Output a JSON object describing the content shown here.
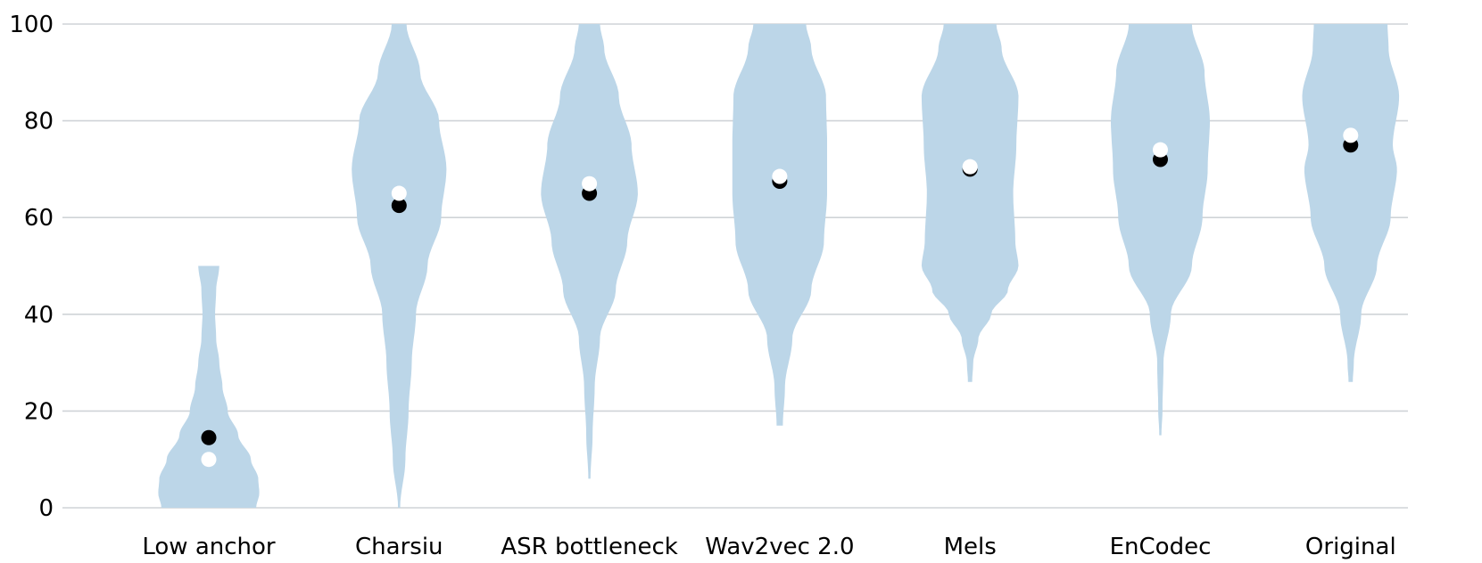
{
  "chart_data": {
    "type": "violin",
    "title": "",
    "xlabel": "",
    "ylabel": "",
    "ylim": [
      0,
      100
    ],
    "yticks": [
      0,
      20,
      40,
      60,
      80,
      100
    ],
    "grid": true,
    "colors": {
      "violin": "#bcd6e8",
      "mean": "#000000",
      "median": "#ffffff",
      "grid": "#cfd3d7"
    },
    "categories": [
      "Low anchor",
      "Charsiu",
      "ASR bottleneck",
      "Wav2vec 2.0",
      "Mels",
      "EnCodec",
      "Original"
    ],
    "series": [
      {
        "name": "Low anchor",
        "min": 0,
        "max": 50,
        "mean": 14.5,
        "median": 10,
        "profile": [
          [
            0,
            0.45
          ],
          [
            3,
            0.48
          ],
          [
            6,
            0.47
          ],
          [
            10,
            0.4
          ],
          [
            15,
            0.28
          ],
          [
            20,
            0.18
          ],
          [
            25,
            0.13
          ],
          [
            30,
            0.1
          ],
          [
            35,
            0.07
          ],
          [
            40,
            0.06
          ],
          [
            45,
            0.07
          ],
          [
            50,
            0.1
          ]
        ]
      },
      {
        "name": "Charsiu",
        "min": 0,
        "max": 100,
        "mean": 62.5,
        "median": 65,
        "profile": [
          [
            0,
            0.01
          ],
          [
            10,
            0.06
          ],
          [
            20,
            0.09
          ],
          [
            30,
            0.12
          ],
          [
            40,
            0.16
          ],
          [
            50,
            0.27
          ],
          [
            60,
            0.4
          ],
          [
            70,
            0.45
          ],
          [
            80,
            0.38
          ],
          [
            90,
            0.2
          ],
          [
            100,
            0.07
          ]
        ]
      },
      {
        "name": "ASR bottleneck",
        "min": 6,
        "max": 100,
        "mean": 65,
        "median": 67,
        "profile": [
          [
            6,
            0.01
          ],
          [
            15,
            0.03
          ],
          [
            25,
            0.05
          ],
          [
            35,
            0.1
          ],
          [
            45,
            0.25
          ],
          [
            55,
            0.36
          ],
          [
            65,
            0.46
          ],
          [
            75,
            0.4
          ],
          [
            85,
            0.28
          ],
          [
            95,
            0.14
          ],
          [
            100,
            0.1
          ]
        ]
      },
      {
        "name": "Wav2vec 2.0",
        "min": 17,
        "max": 100,
        "mean": 67.5,
        "median": 68.5,
        "profile": [
          [
            17,
            0.03
          ],
          [
            25,
            0.05
          ],
          [
            35,
            0.12
          ],
          [
            45,
            0.3
          ],
          [
            55,
            0.42
          ],
          [
            65,
            0.45
          ],
          [
            75,
            0.45
          ],
          [
            85,
            0.44
          ],
          [
            95,
            0.3
          ],
          [
            100,
            0.25
          ]
        ]
      },
      {
        "name": "Mels",
        "min": 26,
        "max": 100,
        "mean": 70,
        "median": 70.5,
        "profile": [
          [
            26,
            0.02
          ],
          [
            30,
            0.03
          ],
          [
            35,
            0.08
          ],
          [
            40,
            0.2
          ],
          [
            45,
            0.36
          ],
          [
            50,
            0.46
          ],
          [
            55,
            0.43
          ],
          [
            65,
            0.41
          ],
          [
            75,
            0.44
          ],
          [
            85,
            0.46
          ],
          [
            95,
            0.3
          ],
          [
            100,
            0.25
          ]
        ]
      },
      {
        "name": "EnCodec",
        "min": 15,
        "max": 100,
        "mean": 72,
        "median": 74,
        "profile": [
          [
            15,
            0.01
          ],
          [
            20,
            0.02
          ],
          [
            30,
            0.03
          ],
          [
            40,
            0.1
          ],
          [
            50,
            0.3
          ],
          [
            60,
            0.4
          ],
          [
            70,
            0.45
          ],
          [
            80,
            0.47
          ],
          [
            90,
            0.42
          ],
          [
            100,
            0.3
          ]
        ]
      },
      {
        "name": "Original",
        "min": 26,
        "max": 100,
        "mean": 75,
        "median": 77,
        "profile": [
          [
            26,
            0.02
          ],
          [
            30,
            0.03
          ],
          [
            40,
            0.1
          ],
          [
            50,
            0.25
          ],
          [
            60,
            0.38
          ],
          [
            70,
            0.44
          ],
          [
            75,
            0.4
          ],
          [
            85,
            0.46
          ],
          [
            95,
            0.36
          ],
          [
            100,
            0.35
          ]
        ]
      }
    ]
  }
}
